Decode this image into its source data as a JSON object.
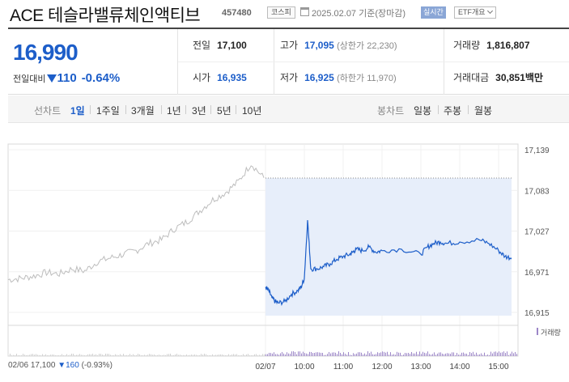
{
  "header": {
    "name": "ACE 테슬라밸류체인액티브",
    "code": "457480",
    "market": "코스피",
    "date": "2025.02.07 기준(장마감)",
    "realtime_label": "실시간",
    "etf_label": "ETF개요"
  },
  "quote": {
    "price": "16,990",
    "change_label": "전일대비",
    "change": "110",
    "change_pct": "-0.64%",
    "prev_label": "전일",
    "prev": "17,100",
    "open_label": "시가",
    "open": "16,935",
    "high_label": "고가",
    "high": "17,095",
    "upper_limit": "(상한가 22,230)",
    "low_label": "저가",
    "low": "16,925",
    "lower_limit": "(하한가 11,970)",
    "volume_label": "거래량",
    "volume": "1,816,807",
    "value_label": "거래대금",
    "value": "30,851",
    "value_unit": "백만"
  },
  "periods": {
    "line_label": "선차트",
    "line_options": [
      "1일",
      "1주일",
      "3개월",
      "1년",
      "3년",
      "5년",
      "10년"
    ],
    "active": "1일",
    "candle_label": "봉차트",
    "candle_options": [
      "일봉",
      "주봉",
      "월봉"
    ]
  },
  "colors": {
    "accent": "#1d5ec9",
    "fill": "#e7eefa",
    "prev_day": "#bdbdbd",
    "volume": "#9c86c8"
  },
  "chart_data": {
    "type": "line",
    "ylim": [
      16915,
      17139
    ],
    "yticks": [
      "17,139",
      "17,083",
      "17,027",
      "16,971",
      "16,915"
    ],
    "xticks": [
      "02/07",
      "10:00",
      "11:00",
      "12:00",
      "13:00",
      "14:00",
      "15:00"
    ],
    "prev_close": 17100,
    "volume_legend": "거래량",
    "prev_day_footer": {
      "date": "02/06",
      "price": "17,100",
      "change": "▼160",
      "change_pct": "(-0.93%)"
    },
    "series": [
      {
        "x": [
          0,
          0.05,
          0.1,
          0.15,
          0.2,
          0.25,
          0.3,
          0.35,
          0.4,
          0.45,
          0.5,
          0.55,
          0.6,
          0.65,
          0.7,
          0.75,
          0.8,
          0.85,
          0.9,
          0.95,
          1.0
        ],
        "values": [
          16960,
          16962,
          16965,
          16970,
          16968,
          16975,
          16972,
          16985,
          16990,
          16995,
          17000,
          17010,
          17015,
          17030,
          17040,
          17055,
          17070,
          17080,
          17095,
          17120,
          17100
        ]
      },
      {
        "x": [
          "09:00",
          "09:05",
          "09:10",
          "09:15",
          "09:20",
          "09:30",
          "09:40",
          "09:50",
          "09:55",
          "10:00",
          "10:05",
          "10:10",
          "10:20",
          "10:30",
          "10:40",
          "10:50",
          "11:00",
          "11:10",
          "11:15",
          "11:20",
          "11:30",
          "11:40",
          "11:50",
          "12:00",
          "12:30",
          "13:00",
          "13:10",
          "13:20",
          "13:30",
          "13:40",
          "14:00",
          "14:30",
          "14:45",
          "15:00",
          "15:10",
          "15:20"
        ],
        "values": [
          16950,
          16945,
          16935,
          16930,
          16928,
          16930,
          16940,
          16945,
          16950,
          16962,
          17042,
          16975,
          16975,
          16978,
          16982,
          16988,
          16992,
          16995,
          16998,
          17002,
          17000,
          17005,
          16998,
          17000,
          17002,
          16995,
          17005,
          17010,
          17012,
          17010,
          17012,
          17015,
          17010,
          17000,
          16992,
          16990
        ]
      }
    ]
  }
}
